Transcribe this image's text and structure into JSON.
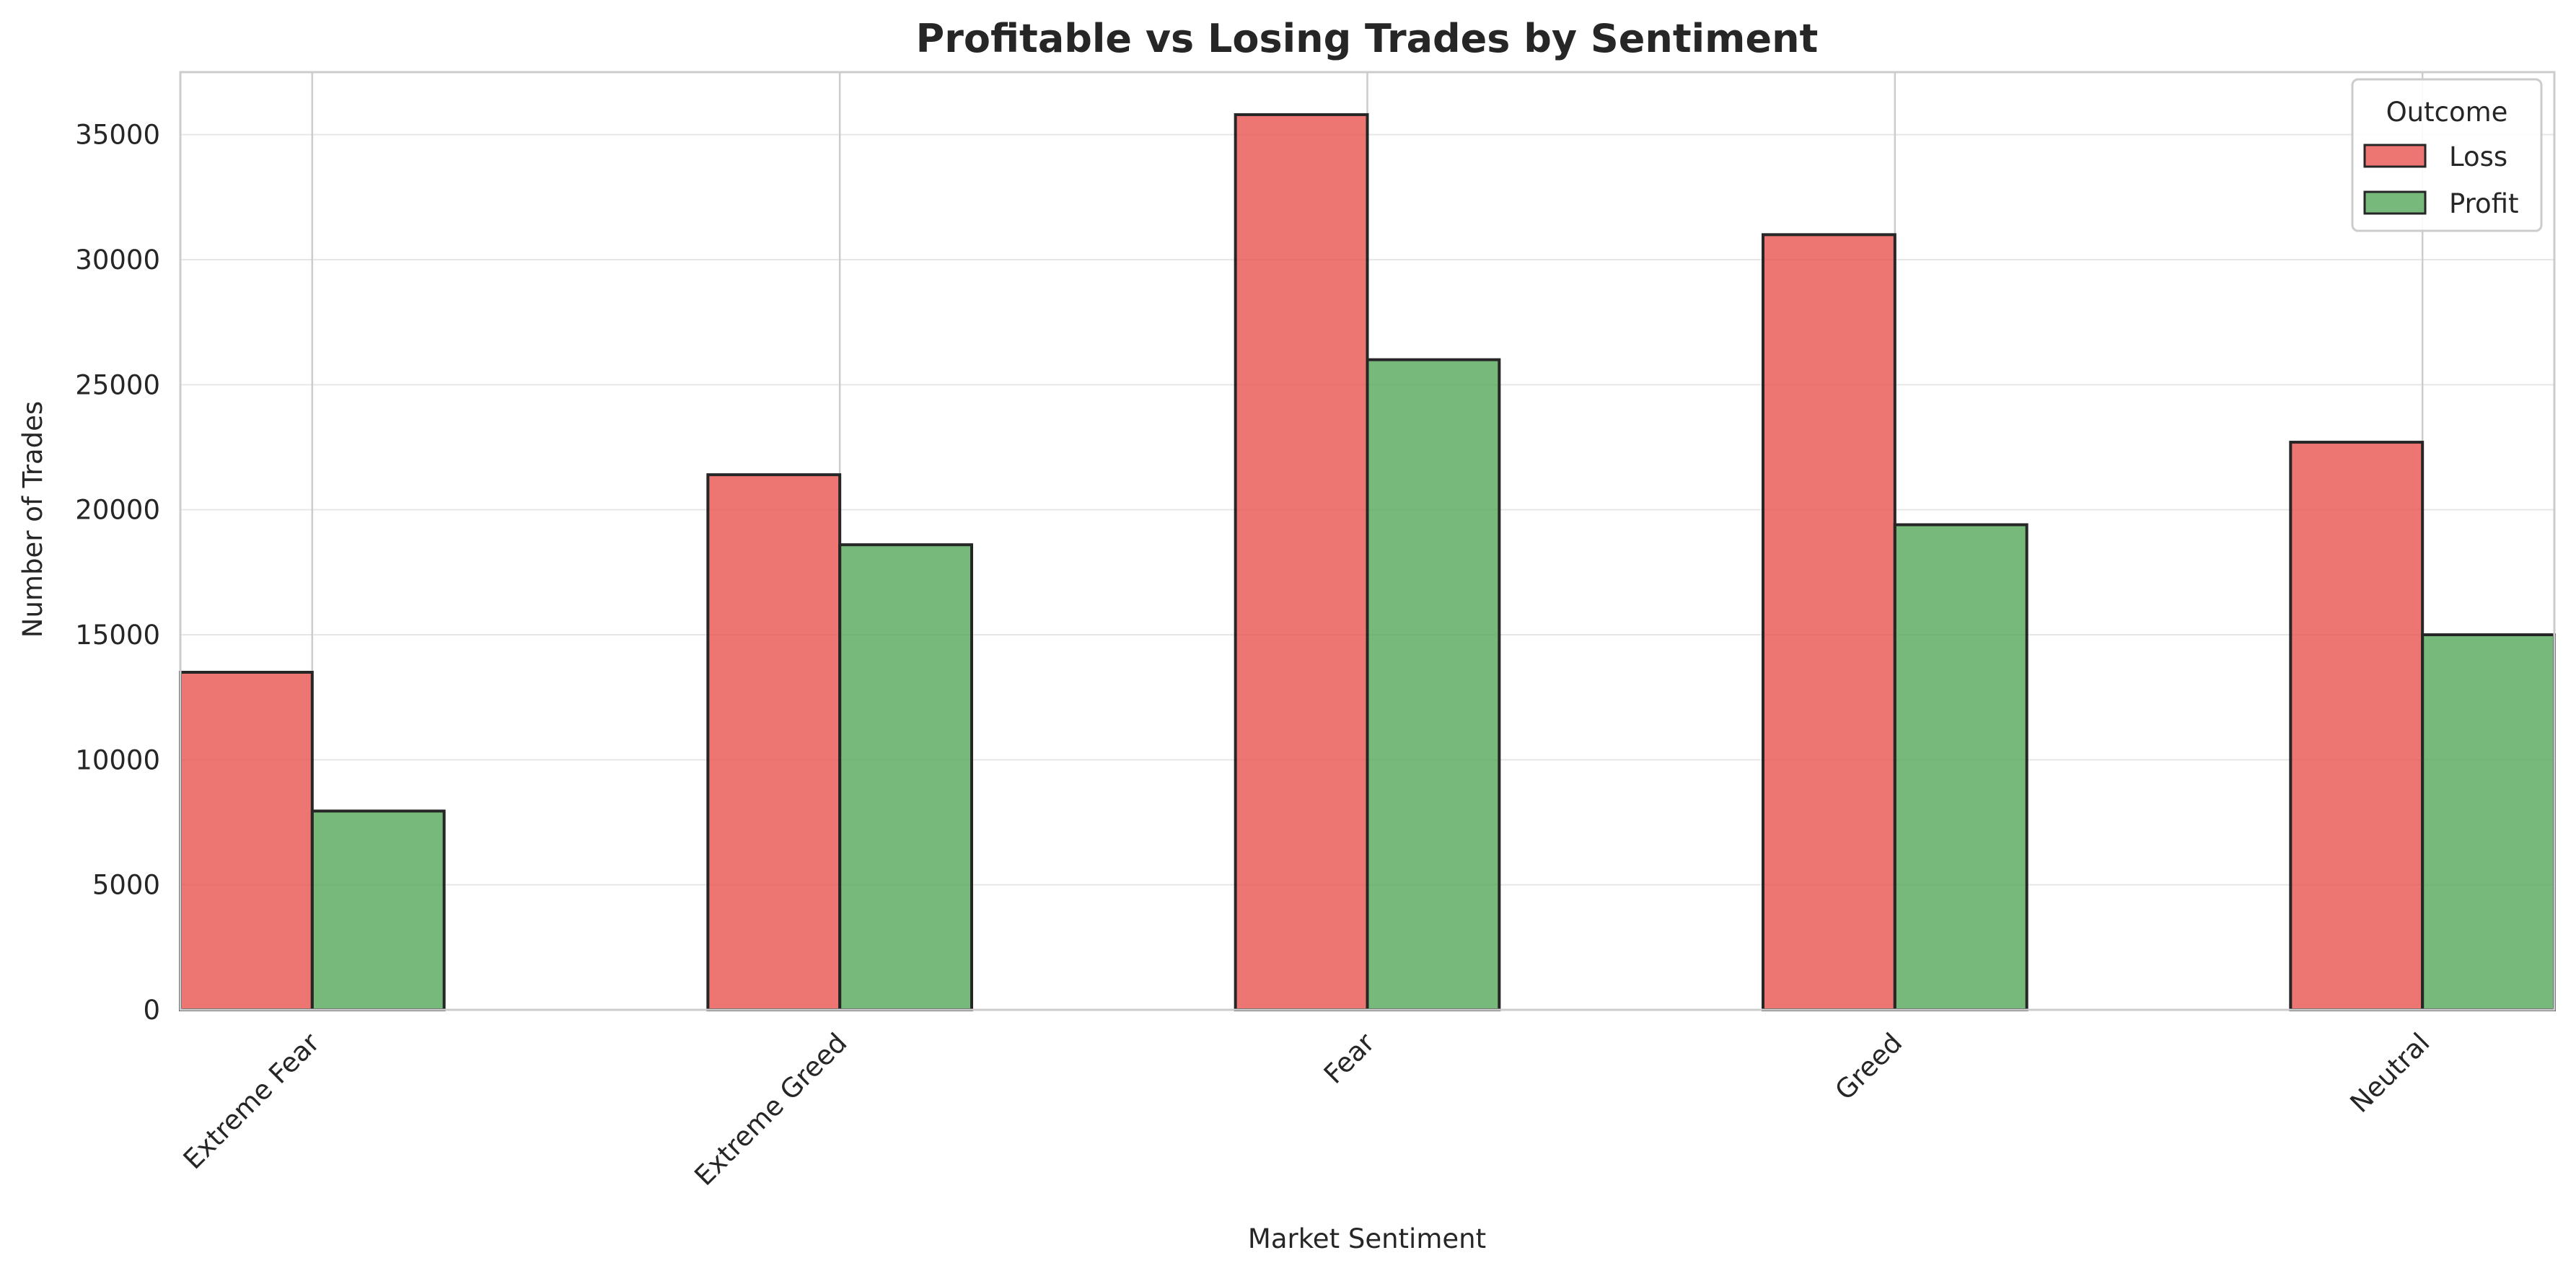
{
  "chart_data": {
    "type": "bar",
    "title": "Profitable vs Losing Trades by Sentiment",
    "xlabel": "Market Sentiment",
    "ylabel": "Number of Trades",
    "categories": [
      "Extreme Fear",
      "Extreme Greed",
      "Fear",
      "Greed",
      "Neutral"
    ],
    "series": [
      {
        "name": "Loss",
        "color": "#e8524f",
        "values": [
          13500,
          21400,
          35800,
          31000,
          22700
        ]
      },
      {
        "name": "Profit",
        "color": "#55a85a",
        "values": [
          7950,
          18600,
          26000,
          19400,
          15000
        ]
      }
    ],
    "ylim": [
      0,
      37500
    ],
    "yticks": [
      0,
      5000,
      10000,
      15000,
      20000,
      25000,
      30000,
      35000
    ],
    "ytick_labels": [
      "0",
      "5000",
      "10000",
      "15000",
      "20000",
      "25000",
      "30000",
      "35000"
    ],
    "legend": {
      "title": "Outcome",
      "placement": "top-right"
    },
    "grid": true,
    "colors": {
      "bar_edge": "#262626",
      "grid": "#e6e6e6",
      "spine": "#cccccc",
      "text": "#262626"
    }
  }
}
